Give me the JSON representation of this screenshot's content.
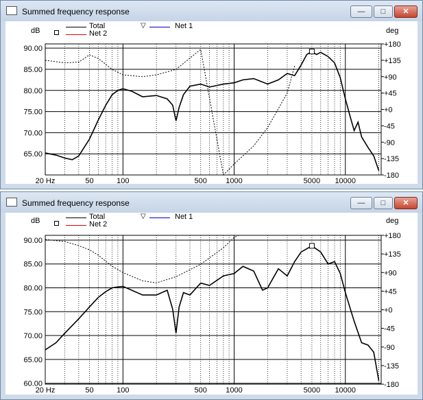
{
  "windows": [
    {
      "title": "Summed frequency response",
      "legend": {
        "total": "Total",
        "net2": "Net 2",
        "net1": "Net 1"
      },
      "units": {
        "left": "dB",
        "right": "deg"
      },
      "chart_data": {
        "type": "line",
        "xscale": "log",
        "xlim": [
          20,
          21000
        ],
        "ylim": [
          60,
          91
        ],
        "y2lim": [
          -180,
          180
        ],
        "xticks": [
          "20 Hz",
          "50",
          "100",
          "500",
          "1000",
          "5000",
          "10000"
        ],
        "yticks": [
          "90.00",
          "85.00",
          "80.00",
          "75.00",
          "70.00",
          "65.00"
        ],
        "y2ticks": [
          "+180",
          "+135",
          "+90",
          "+45",
          "+0",
          "-45",
          "-90",
          "-135",
          "-180"
        ],
        "grid": true,
        "series": [
          {
            "name": "Total",
            "axis": "dB",
            "x": [
              20,
              25,
              30,
              35,
              40,
              50,
              60,
              70,
              80,
              90,
              100,
              120,
              150,
              200,
              250,
              280,
              300,
              320,
              350,
              400,
              500,
              600,
              800,
              1000,
              1200,
              1500,
              2000,
              2500,
              3000,
              3500,
              4000,
              4500,
              5000,
              5500,
              6000,
              7000,
              8000,
              9000,
              10000,
              11000,
              12000,
              13000,
              14000,
              16000,
              18000,
              20000
            ],
            "y": [
              65.2,
              64.7,
              64,
              63.6,
              64.5,
              68.5,
              73,
              76.5,
              79,
              80,
              80.4,
              79.8,
              78.5,
              78.8,
              78,
              76.5,
              72.8,
              76,
              79,
              81,
              81.5,
              80.8,
              81.5,
              81.8,
              82.5,
              82.8,
              81.5,
              82.5,
              84,
              83.5,
              86,
              88.5,
              89.2,
              88.5,
              89,
              88,
              86.5,
              83,
              78,
              74,
              70.5,
              72.5,
              69,
              66.5,
              64.5,
              61
            ]
          },
          {
            "name": "Net 1",
            "axis": "deg",
            "x": [
              20,
              30,
              40,
              50,
              60,
              80,
              100,
              150,
              200,
              300,
              500,
              800,
              1000,
              1500,
              2000,
              3000,
              3500
            ],
            "y": [
              135,
              128,
              130,
              150,
              140,
              110,
              95,
              90,
              95,
              110,
              165,
              -180,
              -150,
              -100,
              -50,
              45,
              120
            ]
          },
          {
            "name": "Net 2",
            "axis": "deg",
            "x": [],
            "y": []
          }
        ]
      }
    },
    {
      "title": "Summed frequency response",
      "legend": {
        "total": "Total",
        "net2": "Net 2",
        "net1": "Net 1"
      },
      "units": {
        "left": "dB",
        "right": "deg"
      },
      "chart_data": {
        "type": "line",
        "xscale": "log",
        "xlim": [
          20,
          21000
        ],
        "ylim": [
          59.8,
          91
        ],
        "y2lim": [
          -180,
          180
        ],
        "xticks": [
          "20 Hz",
          "50",
          "100",
          "500",
          "1000",
          "5000",
          "10000"
        ],
        "yticks": [
          "90.00",
          "85.00",
          "80.00",
          "75.00",
          "70.00",
          "65.00",
          "60.00"
        ],
        "y2ticks": [
          "+180",
          "+135",
          "+90",
          "+45",
          "+0",
          "-45",
          "-90",
          "-135",
          "-180"
        ],
        "grid": true,
        "series": [
          {
            "name": "Total",
            "axis": "dB",
            "x": [
              20,
              25,
              30,
              40,
              50,
              60,
              70,
              80,
              90,
              100,
              120,
              150,
              200,
              250,
              280,
              300,
              320,
              350,
              400,
              500,
              600,
              800,
              1000,
              1200,
              1500,
              1800,
              2000,
              2500,
              3000,
              3500,
              4000,
              5000,
              6000,
              7000,
              8000,
              9000,
              10000,
              12000,
              14000,
              16000,
              18000,
              20000
            ],
            "y": [
              67,
              68.5,
              70.5,
              73.5,
              76,
              78,
              79.2,
              80,
              80.2,
              80.3,
              79.5,
              78.5,
              78.5,
              79.5,
              75.5,
              70.5,
              76,
              79,
              78.5,
              81,
              80.5,
              82.5,
              83,
              84.5,
              83.5,
              79.5,
              80,
              84,
              82.5,
              85.5,
              87.5,
              88.8,
              87.5,
              85,
              85.5,
              83,
              79,
              73,
              68.5,
              68,
              66.5,
              60.5
            ]
          },
          {
            "name": "Net 1",
            "axis": "deg",
            "x": [
              20,
              30,
              40,
              50,
              60,
              80,
              100,
              150,
              200,
              300,
              500,
              800,
              1000,
              1100
            ],
            "y": [
              170,
              165,
              155,
              145,
              132,
              105,
              90,
              70,
              65,
              80,
              110,
              150,
              175,
              180
            ]
          },
          {
            "name": "Net 2",
            "axis": "deg",
            "x": [],
            "y": []
          }
        ]
      }
    }
  ]
}
